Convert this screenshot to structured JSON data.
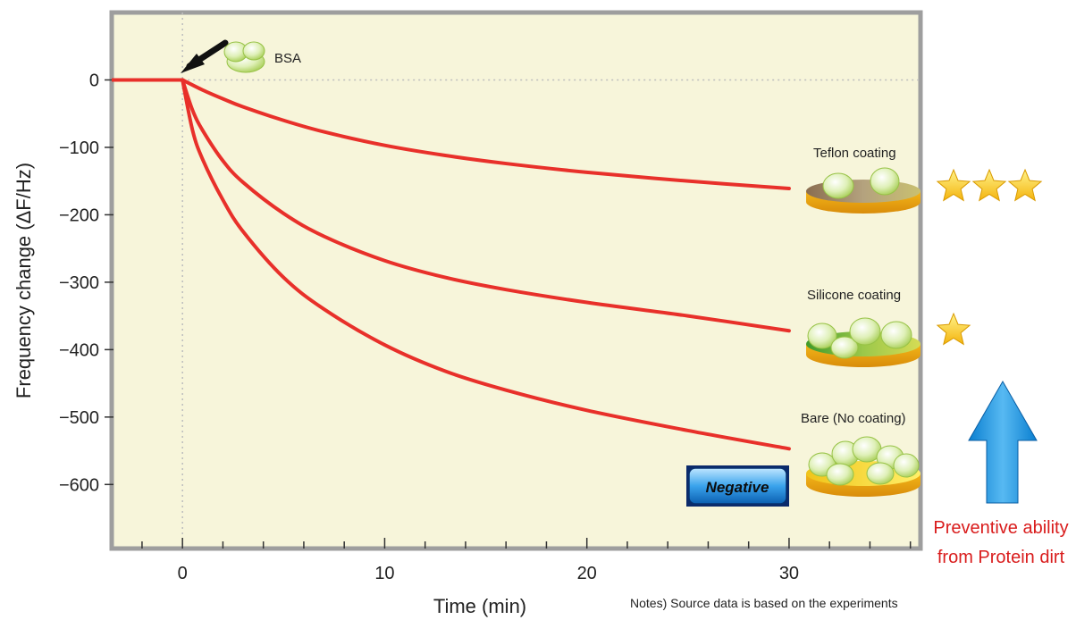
{
  "chart_data": {
    "type": "line",
    "xlabel": "Time (min)",
    "ylabel": "Frequency change (ΔF/Hz)",
    "xlim": [
      -3.5,
      36.5
    ],
    "ylim": [
      -695,
      100
    ],
    "xticks": [
      0,
      10,
      20,
      30
    ],
    "yticks": [
      0,
      -100,
      -200,
      -300,
      -400,
      -500,
      -600
    ],
    "grid": false,
    "annotations": {
      "injection": "BSA",
      "negative_badge": "Negative",
      "arrow_label_line1": "Preventive ability",
      "arrow_label_line2": "from Protein dirt",
      "note_line1": "Notes) Source data is based on the experiments"
    },
    "baseline": {
      "x": [
        -3.5,
        0
      ],
      "values": [
        0,
        0
      ]
    },
    "series": [
      {
        "name": "Teflon coating",
        "rating": 3,
        "x": [
          0,
          1,
          2,
          3,
          5,
          7,
          10,
          13,
          16,
          20,
          25,
          30
        ],
        "values": [
          0,
          -15,
          -28,
          -40,
          -60,
          -77,
          -97,
          -112,
          -124,
          -137,
          -150,
          -161
        ]
      },
      {
        "name": "Silicone coating",
        "rating": 1,
        "x": [
          0,
          0.5,
          1,
          2,
          3,
          5,
          7,
          10,
          13,
          16,
          20,
          25,
          30
        ],
        "values": [
          0,
          -45,
          -75,
          -120,
          -152,
          -198,
          -232,
          -268,
          -293,
          -311,
          -330,
          -350,
          -372
        ]
      },
      {
        "name": "Bare (No coating)",
        "rating": 0,
        "x": [
          0,
          0.5,
          1,
          2,
          3,
          5,
          7,
          10,
          13,
          16,
          20,
          25,
          30
        ],
        "values": [
          0,
          -75,
          -118,
          -178,
          -225,
          -293,
          -340,
          -393,
          -432,
          -460,
          -490,
          -520,
          -547
        ]
      }
    ]
  }
}
